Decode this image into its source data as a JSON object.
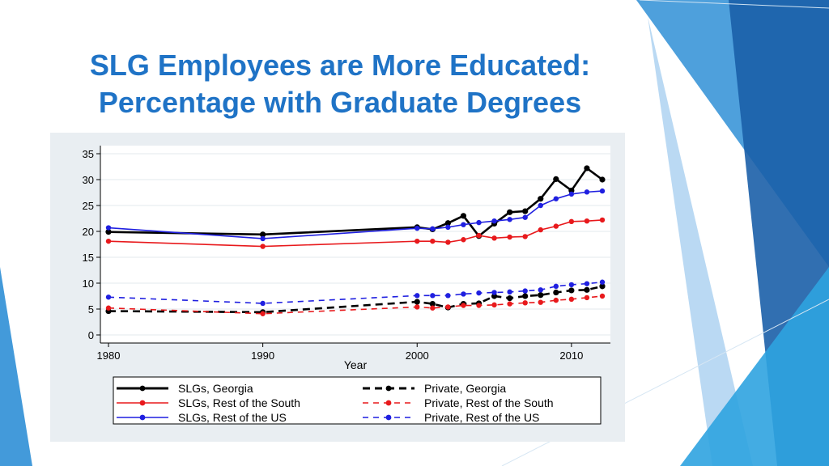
{
  "title": {
    "line1": "SLG Employees are More Educated:",
    "line2": "Percentage with Graduate Degrees"
  },
  "colors": {
    "title": "#1f73c6",
    "panel": "#e9eef2",
    "deco_dark": "#1b5fa8",
    "deco_mid": "#2f8fd6",
    "deco_light": "#9cc9ee"
  },
  "chart_data": {
    "type": "line",
    "xlabel": "Year",
    "ylabel": "",
    "xlim": [
      1980,
      2012
    ],
    "ylim": [
      0,
      35
    ],
    "x_ticks": [
      1980,
      1990,
      2000,
      2010
    ],
    "y_ticks": [
      0,
      5,
      10,
      15,
      20,
      25,
      30,
      35
    ],
    "grid": true,
    "legend_position": "bottom",
    "series": [
      {
        "name": "SLGs, Georgia",
        "color": "#000000",
        "dashed": false,
        "thick": true,
        "x": [
          1980,
          1990,
          2000,
          2001,
          2002,
          2003,
          2004,
          2005,
          2006,
          2007,
          2008,
          2009,
          2010,
          2011,
          2012
        ],
        "y": [
          19.9,
          19.4,
          20.8,
          20.4,
          21.6,
          23.0,
          19.1,
          21.5,
          23.7,
          23.9,
          26.3,
          30.1,
          27.9,
          32.2,
          30.0
        ]
      },
      {
        "name": "SLGs, Rest of the South",
        "color": "#e8191c",
        "dashed": false,
        "thick": false,
        "x": [
          1980,
          1990,
          2000,
          2001,
          2002,
          2003,
          2004,
          2005,
          2006,
          2007,
          2008,
          2009,
          2010,
          2011,
          2012
        ],
        "y": [
          18.1,
          17.1,
          18.1,
          18.1,
          17.9,
          18.4,
          19.2,
          18.7,
          18.9,
          19.0,
          20.3,
          21.0,
          21.9,
          22.0,
          22.2
        ]
      },
      {
        "name": "SLGs, Rest of the US",
        "color": "#1f1fe0",
        "dashed": false,
        "thick": false,
        "x": [
          1980,
          1990,
          2000,
          2001,
          2002,
          2003,
          2004,
          2005,
          2006,
          2007,
          2008,
          2009,
          2010,
          2011,
          2012
        ],
        "y": [
          20.7,
          18.6,
          20.6,
          20.5,
          20.8,
          21.3,
          21.7,
          22.0,
          22.3,
          22.7,
          25.0,
          26.3,
          27.2,
          27.6,
          27.8
        ]
      },
      {
        "name": "Private, Georgia",
        "color": "#000000",
        "dashed": true,
        "thick": true,
        "x": [
          1980,
          1990,
          2000,
          2001,
          2002,
          2003,
          2004,
          2005,
          2006,
          2007,
          2008,
          2009,
          2010,
          2011,
          2012
        ],
        "y": [
          4.6,
          4.4,
          6.4,
          6.0,
          5.3,
          6.0,
          6.1,
          7.5,
          7.1,
          7.5,
          7.7,
          8.2,
          8.6,
          8.7,
          9.4
        ]
      },
      {
        "name": "Private, Rest of the South",
        "color": "#e8191c",
        "dashed": true,
        "thick": false,
        "x": [
          1980,
          1990,
          2000,
          2001,
          2002,
          2003,
          2004,
          2005,
          2006,
          2007,
          2008,
          2009,
          2010,
          2011,
          2012
        ],
        "y": [
          5.2,
          4.1,
          5.4,
          5.2,
          5.4,
          5.7,
          5.7,
          5.8,
          6.0,
          6.2,
          6.3,
          6.7,
          6.9,
          7.2,
          7.5
        ]
      },
      {
        "name": "Private, Rest of the US",
        "color": "#1f1fe0",
        "dashed": true,
        "thick": false,
        "x": [
          1980,
          1990,
          2000,
          2001,
          2002,
          2003,
          2004,
          2005,
          2006,
          2007,
          2008,
          2009,
          2010,
          2011,
          2012
        ],
        "y": [
          7.3,
          6.1,
          7.6,
          7.6,
          7.6,
          7.9,
          8.1,
          8.2,
          8.3,
          8.5,
          8.7,
          9.4,
          9.7,
          9.9,
          10.2
        ]
      }
    ]
  }
}
